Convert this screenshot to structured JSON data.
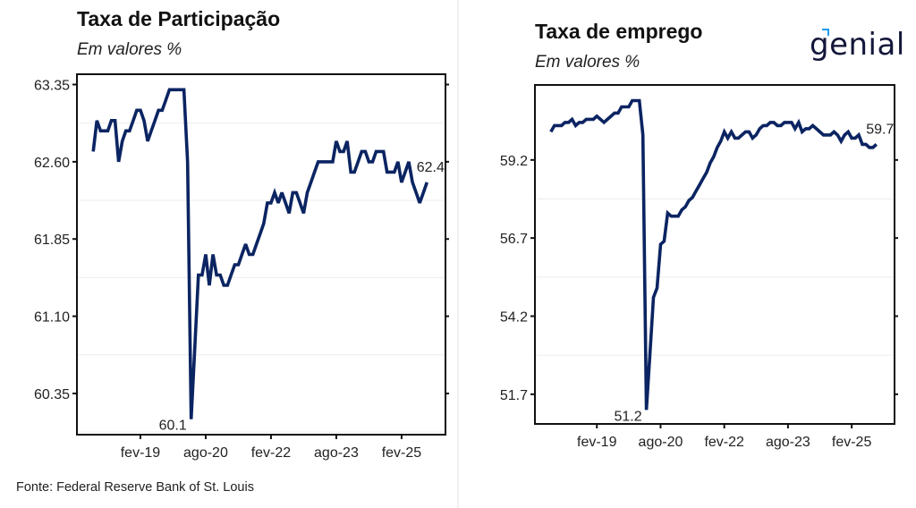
{
  "footer": {
    "source": "Fonte: Federal Reserve Bank of St. Louis"
  },
  "logo": {
    "text": "genial",
    "accent_color": "#1e9bf0",
    "color": "#14173a"
  },
  "chart_data": [
    {
      "type": "line",
      "title": "Taxa de Participação",
      "subtitle": "Em valores %",
      "xlabel": "",
      "ylabel": "",
      "line_color": "#0b2462",
      "grid": "minor horizontal only",
      "ylim": [
        59.95,
        63.45
      ],
      "xlim": [
        "2017-08",
        "2026-02"
      ],
      "yticks": [
        63.35,
        62.6,
        61.85,
        61.1,
        60.35
      ],
      "ytick_labels": [
        "63.35",
        "62.60",
        "61.85",
        "61.10",
        "60.35"
      ],
      "xticks": [
        "2019-02",
        "2020-08",
        "2022-02",
        "2023-08",
        "2025-02"
      ],
      "xtick_labels": [
        "fev-19",
        "ago-20",
        "fev-22",
        "ago-23",
        "fev-25"
      ],
      "start": "2018-01",
      "frequency": "monthly",
      "values": [
        62.7,
        63.0,
        62.9,
        62.9,
        62.9,
        63.0,
        63.0,
        62.6,
        62.8,
        62.9,
        62.9,
        63.0,
        63.1,
        63.1,
        63.0,
        62.8,
        62.9,
        63.0,
        63.1,
        63.1,
        63.2,
        63.3,
        63.3,
        63.3,
        63.3,
        63.3,
        62.6,
        60.1,
        60.8,
        61.5,
        61.5,
        61.7,
        61.4,
        61.7,
        61.5,
        61.5,
        61.4,
        61.4,
        61.5,
        61.6,
        61.6,
        61.7,
        61.8,
        61.7,
        61.7,
        61.8,
        61.9,
        62.0,
        62.2,
        62.2,
        62.3,
        62.2,
        62.3,
        62.2,
        62.1,
        62.3,
        62.3,
        62.2,
        62.1,
        62.3,
        62.4,
        62.5,
        62.6,
        62.6,
        62.6,
        62.6,
        62.6,
        62.8,
        62.7,
        62.7,
        62.8,
        62.5,
        62.5,
        62.6,
        62.7,
        62.7,
        62.6,
        62.6,
        62.7,
        62.7,
        62.7,
        62.5,
        62.5,
        62.5,
        62.6,
        62.4,
        62.5,
        62.6,
        62.4,
        62.3,
        62.2,
        62.3,
        62.4
      ],
      "annotations": [
        {
          "label": "60.1",
          "x": "2020-04",
          "y": 60.1,
          "position": "left-below"
        },
        {
          "label": "62.4",
          "x": "2025-09",
          "y": 62.4,
          "position": "above"
        }
      ]
    },
    {
      "type": "line",
      "title": "Taxa de emprego",
      "subtitle": "Em valores %",
      "xlabel": "",
      "ylabel": "",
      "line_color": "#0b2462",
      "grid": "minor horizontal only",
      "ylim": [
        50.75,
        61.6
      ],
      "xlim": [
        "2017-08",
        "2026-02"
      ],
      "yticks": [
        59.2,
        56.7,
        54.2,
        51.7
      ],
      "ytick_labels": [
        "59.2",
        "56.7",
        "54.2",
        "51.7"
      ],
      "xticks": [
        "2019-02",
        "2020-08",
        "2022-02",
        "2023-08",
        "2025-02"
      ],
      "xtick_labels": [
        "fev-19",
        "ago-20",
        "fev-22",
        "ago-23",
        "fev-25"
      ],
      "start": "2018-01",
      "frequency": "monthly",
      "values": [
        60.1,
        60.3,
        60.3,
        60.3,
        60.4,
        60.4,
        60.5,
        60.3,
        60.4,
        60.4,
        60.5,
        60.5,
        60.5,
        60.6,
        60.5,
        60.4,
        60.5,
        60.6,
        60.7,
        60.7,
        60.9,
        60.9,
        60.9,
        61.1,
        61.1,
        61.1,
        60.0,
        51.2,
        53.0,
        54.8,
        55.1,
        56.5,
        56.6,
        57.5,
        57.4,
        57.4,
        57.4,
        57.6,
        57.7,
        57.9,
        58.0,
        58.2,
        58.4,
        58.6,
        58.8,
        59.1,
        59.3,
        59.6,
        59.8,
        60.1,
        59.9,
        60.1,
        59.9,
        59.9,
        60.0,
        60.1,
        60.1,
        59.9,
        60.0,
        60.2,
        60.3,
        60.3,
        60.4,
        60.4,
        60.3,
        60.3,
        60.4,
        60.4,
        60.4,
        60.2,
        60.4,
        60.1,
        60.2,
        60.2,
        60.3,
        60.2,
        60.1,
        60.0,
        60.0,
        60.0,
        60.1,
        60.0,
        59.8,
        60.0,
        60.1,
        59.9,
        59.9,
        60.0,
        59.7,
        59.7,
        59.6,
        59.6,
        59.7
      ],
      "annotations": [
        {
          "label": "51.2",
          "x": "2020-04",
          "y": 51.2,
          "position": "left-below"
        },
        {
          "label": "59.7",
          "x": "2025-09",
          "y": 59.7,
          "position": "above"
        }
      ]
    }
  ]
}
